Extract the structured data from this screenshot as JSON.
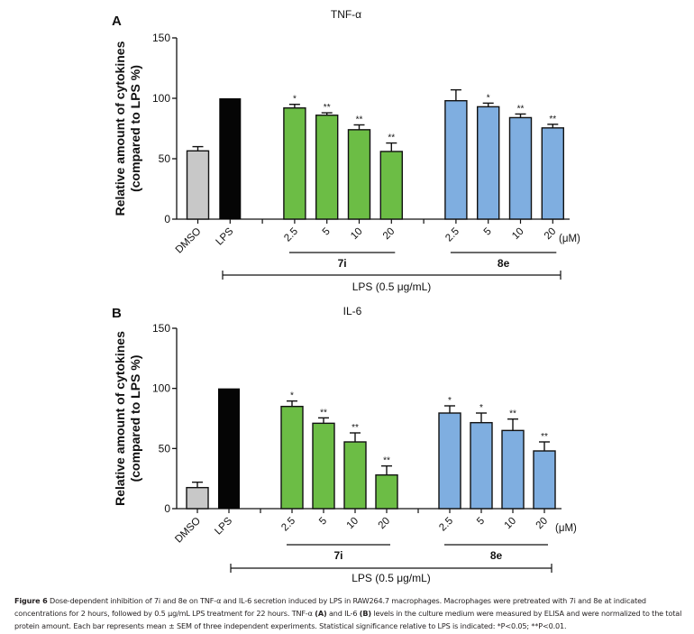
{
  "chart_data": [
    {
      "type": "bar",
      "panel_label": "A",
      "title": "TNF-α",
      "xlabel": "",
      "ylabel": "Relative amount of cytokines (compared to LPS %)",
      "ylabel_lines": [
        "Relative amount of cytokines",
        "(compared to LPS %)"
      ],
      "ylim": [
        0,
        150
      ],
      "yticks": [
        0,
        50,
        100,
        150
      ],
      "grid": false,
      "unit_label": "(μM)",
      "categories": [
        "DMSO",
        "LPS",
        "",
        "2.5",
        "5",
        "10",
        "20",
        "",
        "2.5",
        "5",
        "10",
        "20"
      ],
      "bars": [
        {
          "label": "DMSO",
          "group": "control",
          "value": 56.5,
          "sem": 3.5,
          "sig": "",
          "color": "#c8c8c8"
        },
        {
          "label": "LPS",
          "group": "control",
          "value": 100,
          "sem": 0,
          "sig": "",
          "color": "#050505"
        },
        {
          "label": "2.5",
          "group": "7i",
          "value": 92,
          "sem": 3,
          "sig": "*",
          "color": "#6cbd45"
        },
        {
          "label": "5",
          "group": "7i",
          "value": 86,
          "sem": 2,
          "sig": "**",
          "color": "#6cbd45"
        },
        {
          "label": "10",
          "group": "7i",
          "value": 74,
          "sem": 4,
          "sig": "**",
          "color": "#6cbd45"
        },
        {
          "label": "20",
          "group": "7i",
          "value": 56,
          "sem": 7,
          "sig": "**",
          "color": "#6cbd45"
        },
        {
          "label": "2.5",
          "group": "8e",
          "value": 98,
          "sem": 9,
          "sig": "",
          "color": "#7faee0"
        },
        {
          "label": "5",
          "group": "8e",
          "value": 93,
          "sem": 3,
          "sig": "*",
          "color": "#7faee0"
        },
        {
          "label": "10",
          "group": "8e",
          "value": 84,
          "sem": 3,
          "sig": "**",
          "color": "#7faee0"
        },
        {
          "label": "20",
          "group": "8e",
          "value": 75.5,
          "sem": 3,
          "sig": "**",
          "color": "#7faee0"
        }
      ],
      "group_labels": [
        "7i",
        "8e"
      ],
      "treatment_label": "LPS (0.5 μg/mL)"
    },
    {
      "type": "bar",
      "panel_label": "B",
      "title": "IL-6",
      "xlabel": "",
      "ylabel": "Relative amount of cytokines (compared to LPS %)",
      "ylabel_lines": [
        "Relative amount of cytokines",
        "(compared to LPS %)"
      ],
      "ylim": [
        0,
        150
      ],
      "yticks": [
        0,
        50,
        100,
        150
      ],
      "grid": false,
      "unit_label": "(μM)",
      "categories": [
        "DMSO",
        "LPS",
        "",
        "2.5",
        "5",
        "10",
        "20",
        "",
        "2.5",
        "5",
        "10",
        "20"
      ],
      "bars": [
        {
          "label": "DMSO",
          "group": "control",
          "value": 17.5,
          "sem": 4.5,
          "sig": "",
          "color": "#c8c8c8"
        },
        {
          "label": "LPS",
          "group": "control",
          "value": 100,
          "sem": 0,
          "sig": "",
          "color": "#050505"
        },
        {
          "label": "2.5",
          "group": "7i",
          "value": 85,
          "sem": 4.5,
          "sig": "*",
          "color": "#6cbd45"
        },
        {
          "label": "5",
          "group": "7i",
          "value": 71,
          "sem": 4.5,
          "sig": "**",
          "color": "#6cbd45"
        },
        {
          "label": "10",
          "group": "7i",
          "value": 55.5,
          "sem": 7.5,
          "sig": "**",
          "color": "#6cbd45"
        },
        {
          "label": "20",
          "group": "7i",
          "value": 28,
          "sem": 7.5,
          "sig": "**",
          "color": "#6cbd45"
        },
        {
          "label": "2.5",
          "group": "8e",
          "value": 79.5,
          "sem": 6,
          "sig": "*",
          "color": "#7faee0"
        },
        {
          "label": "5",
          "group": "8e",
          "value": 71.5,
          "sem": 8,
          "sig": "*",
          "color": "#7faee0"
        },
        {
          "label": "10",
          "group": "8e",
          "value": 65,
          "sem": 9.5,
          "sig": "**",
          "color": "#7faee0"
        },
        {
          "label": "20",
          "group": "8e",
          "value": 48,
          "sem": 7.5,
          "sig": "**",
          "color": "#7faee0"
        }
      ],
      "group_labels": [
        "7i",
        "8e"
      ],
      "treatment_label": "LPS (0.5 μg/mL)"
    }
  ],
  "caption": {
    "figure_label": "Figure 6",
    "text_1": " Dose-dependent inhibition of 7i and 8e on TNF-α and IL-6 secretion induced by LPS in RAW264.7 macrophages. Macrophages were pretreated with 7i and 8e at indicated concentrations for 2 hours, followed by 0.5 μg/mL LPS treatment for 22 hours. TNF-α ",
    "label_a": "(A)",
    "text_2": " and IL-6 ",
    "label_b": "(B)",
    "text_3": " levels in the culture medium were measured by ELISA and were normalized to the total protein amount. Each bar represents mean ± SEM of three independent experiments. Statistical significance relative to LPS is indicated: *P<0.05; **P<0.01."
  }
}
